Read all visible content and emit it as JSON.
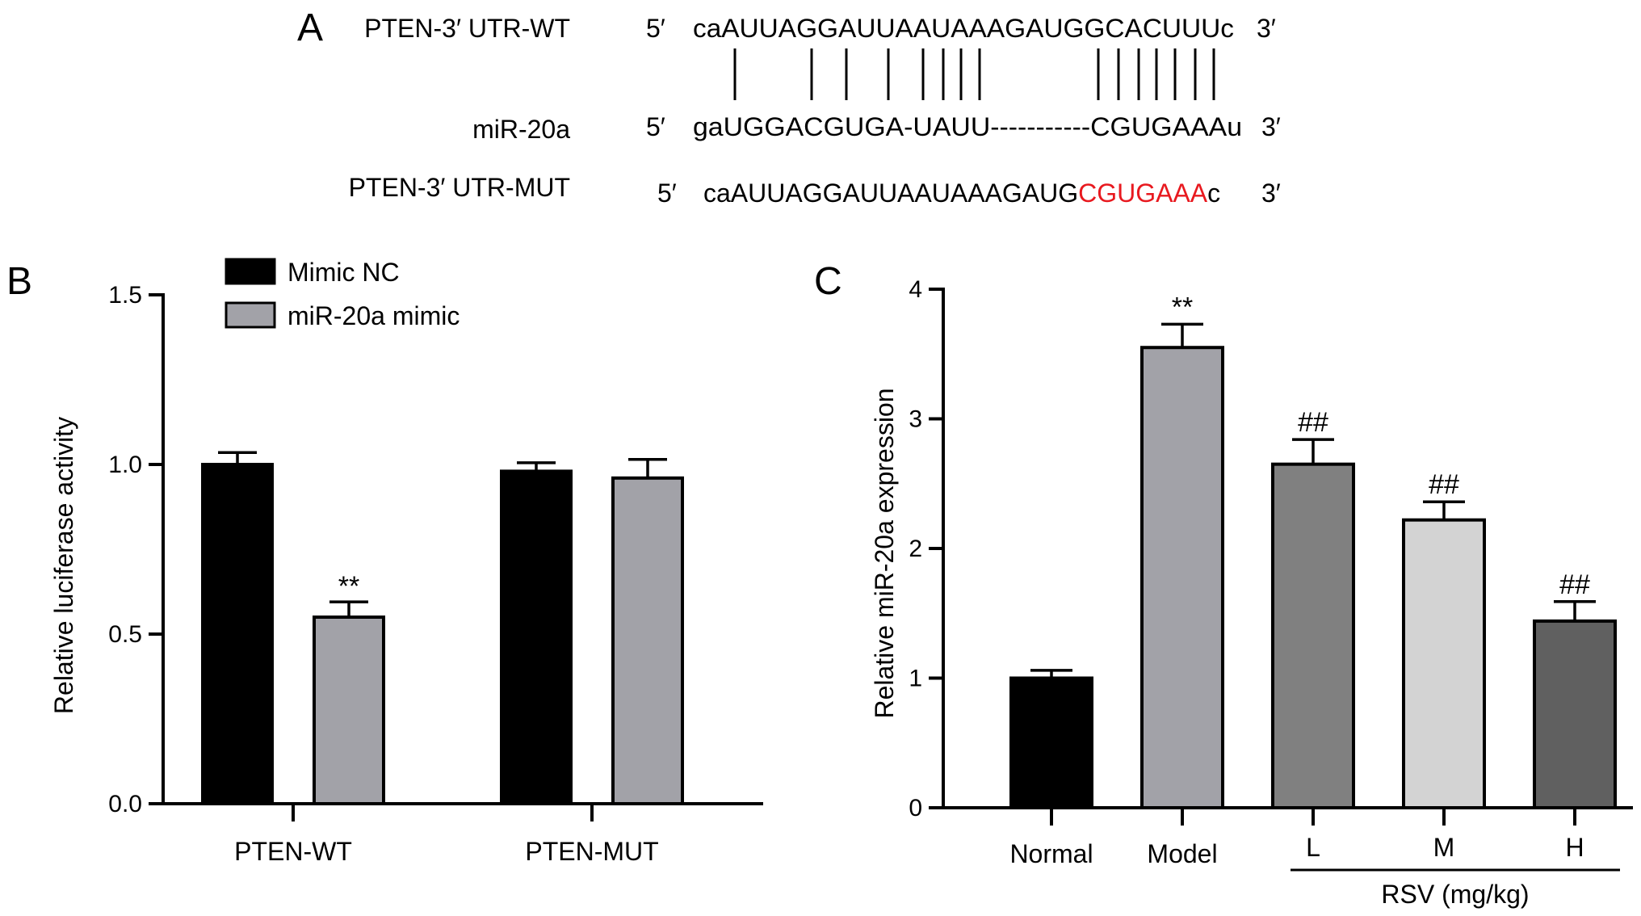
{
  "panel_a": {
    "letter": "A",
    "wt": {
      "label": "PTEN-3′ UTR-WT",
      "five": "5′",
      "seq": "caAUUAGGAUUAAUAAAGAUGGCACUUUc",
      "three": "3′"
    },
    "mir": {
      "label": "miR-20a",
      "five": "5′",
      "seq": "gaUGGACGUGA-UAUU-----------CGUGAAAu",
      "three": "3′"
    },
    "mut": {
      "label": "PTEN-3′ UTR-MUT",
      "five": "5′",
      "seq_black": "caAUUAGGAUUAAUAAAGAUG",
      "seq_red": "CGUGAAA",
      "seq_end": "c",
      "three": "3′"
    },
    "mutation_color": "#e8191f"
  },
  "chart_data": [
    {
      "panel": "B",
      "type": "bar",
      "ylabel": "Relative luciferase activity",
      "ylim": [
        0,
        1.5
      ],
      "yticks": [
        "0.0",
        "0.5",
        "1.0",
        "1.5"
      ],
      "categories": [
        "PTEN-WT",
        "PTEN-MUT"
      ],
      "legend_position": "top-left",
      "series": [
        {
          "name": "Mimic NC",
          "color": "#000000",
          "values": [
            1.0,
            0.98
          ],
          "errors": [
            0.035,
            0.025
          ],
          "annotations": [
            "",
            ""
          ]
        },
        {
          "name": "miR-20a mimic",
          "color": "#a2a2a8",
          "values": [
            0.55,
            0.96
          ],
          "errors": [
            0.045,
            0.055
          ],
          "annotations": [
            "**",
            ""
          ]
        }
      ]
    },
    {
      "panel": "C",
      "type": "bar",
      "ylabel": "Relative miR-20a expression",
      "ylim": [
        0,
        4
      ],
      "yticks": [
        "0",
        "1",
        "2",
        "3",
        "4"
      ],
      "categories": [
        "Normal",
        "Model",
        "L",
        "M",
        "H"
      ],
      "values": [
        1.0,
        3.55,
        2.65,
        2.22,
        1.44
      ],
      "errors": [
        0.06,
        0.18,
        0.19,
        0.14,
        0.15
      ],
      "colors": [
        "#000000",
        "#a2a2a8",
        "#808080",
        "#d3d3d3",
        "#606060"
      ],
      "annotations": [
        "",
        "**",
        "##",
        "##",
        "##"
      ],
      "group_label": "RSV (mg/kg)"
    }
  ]
}
